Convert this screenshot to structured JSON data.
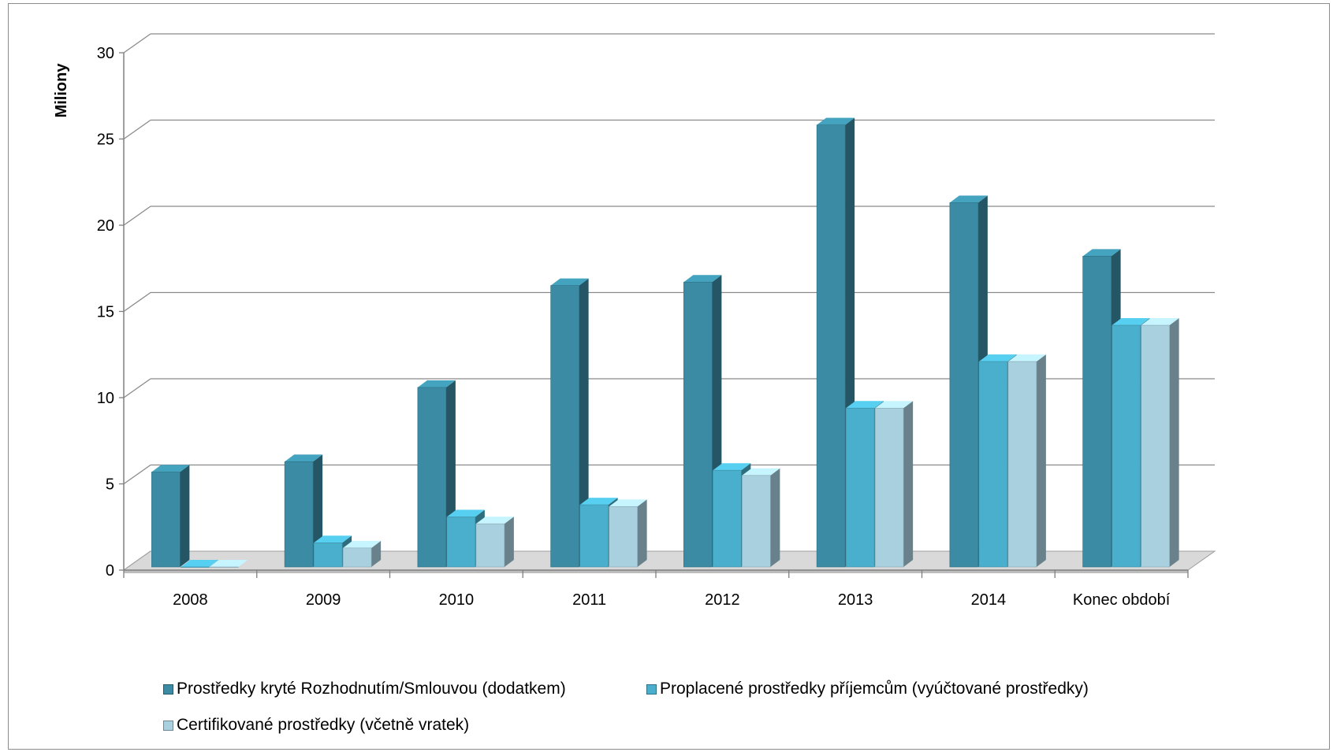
{
  "chart_data": {
    "type": "bar",
    "title": "",
    "xlabel": "",
    "ylabel": "Miliony",
    "ylim": [
      0,
      30
    ],
    "yticks": [
      "0",
      "5",
      "10",
      "15",
      "20",
      "25",
      "30"
    ],
    "grid": true,
    "legend_position": "bottom",
    "categories": [
      "2008",
      "2009",
      "2010",
      "2011",
      "2012",
      "2013",
      "2014",
      "Konec období"
    ],
    "series": [
      {
        "name": "Prostředky kryté Rozhodnutím/Smlouvou (dodatkem)",
        "color": "#3a8ba3",
        "values": [
          5.5,
          6.1,
          10.4,
          16.3,
          16.5,
          25.6,
          21.1,
          18.0
        ]
      },
      {
        "name": "Proplacené prostředky příjemcům (vyúčtované prostředky)",
        "color": "#4aafcc",
        "values": [
          0,
          1.4,
          2.9,
          3.6,
          5.6,
          9.2,
          11.9,
          14.0
        ]
      },
      {
        "name": "Certifikované prostředky (včetně vratek)",
        "color": "#a9d0de",
        "values": [
          0,
          1.1,
          2.5,
          3.5,
          5.3,
          9.2,
          11.9,
          14.0
        ]
      }
    ]
  }
}
